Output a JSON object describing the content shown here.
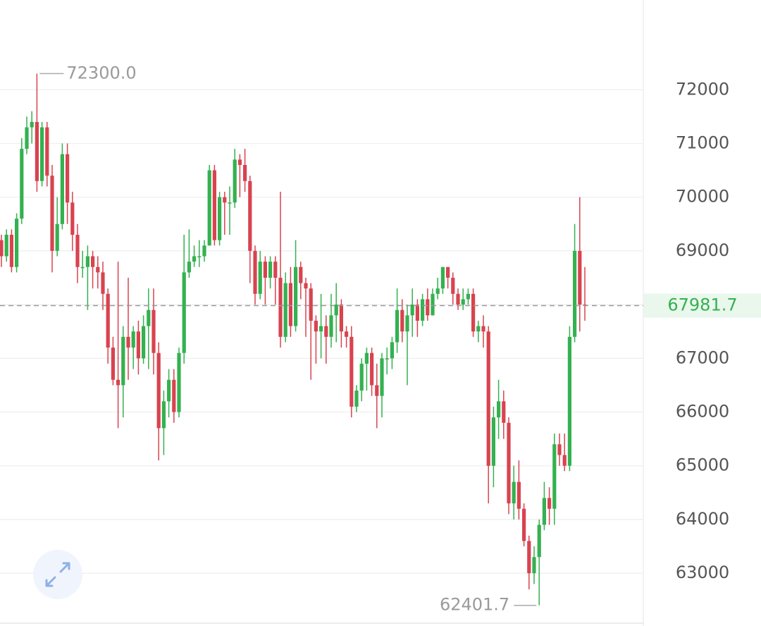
{
  "chart_data": {
    "type": "candlestick",
    "up_color": "#34b150",
    "down_color": "#d8434f",
    "ylim": [
      62070,
      73670
    ],
    "yticks": [
      63000,
      64000,
      65000,
      66000,
      67000,
      68000,
      69000,
      70000,
      71000,
      72000
    ],
    "grid": true,
    "last_price": 67981.7,
    "annotations": [
      {
        "value": 72300,
        "label": "72300.0"
      },
      {
        "value": 62401.7,
        "label": "62401.7"
      }
    ],
    "open": [
      69200,
      68900,
      69300,
      68700,
      69600,
      70900,
      71300,
      71400,
      70300,
      71300,
      70400,
      69000,
      69500,
      70800,
      69900,
      69300,
      68700,
      68700,
      68900,
      68700,
      68600,
      68200,
      67200,
      66600,
      66500,
      67400,
      67200,
      67500,
      67000,
      67600,
      67900,
      67100,
      65700,
      66200,
      66600,
      66000,
      67100,
      68600,
      68800,
      68900,
      68900,
      69100,
      70500,
      69200,
      70000,
      69900,
      69900,
      70700,
      70600,
      70300,
      69000,
      68200,
      68800,
      68500,
      68800,
      68500,
      67400,
      68400,
      67600,
      68700,
      68400,
      68300,
      67700,
      67500,
      67600,
      67400,
      67800,
      68000,
      67500,
      67400,
      66100,
      66400,
      66900,
      67100,
      66500,
      66300,
      67000,
      67000,
      67300,
      67900,
      67500,
      67800,
      68000,
      67700,
      68100,
      67800,
      68200,
      68300,
      68700,
      68500,
      68200,
      68000,
      68100,
      68200,
      67500,
      67600,
      67500,
      65000,
      65900,
      66200,
      65800,
      64300,
      64700,
      64200,
      63600,
      63000,
      63300,
      63900,
      64400,
      64200,
      65400,
      65200,
      65000,
      67400,
      69000,
      68000
    ],
    "high": [
      69300,
      69400,
      69400,
      69700,
      71100,
      71500,
      71600,
      72300,
      71400,
      71400,
      70600,
      70000,
      71000,
      71000,
      70100,
      69500,
      69000,
      69100,
      69000,
      68900,
      68800,
      68300,
      67400,
      68800,
      67600,
      68500,
      67600,
      67700,
      67800,
      68300,
      68300,
      67300,
      66400,
      66800,
      66800,
      67200,
      69300,
      69400,
      69100,
      69200,
      69200,
      70600,
      70600,
      70100,
      70100,
      70200,
      70900,
      70800,
      70900,
      70400,
      69100,
      69000,
      68900,
      68900,
      68900,
      70100,
      68600,
      68700,
      69200,
      68800,
      68500,
      68400,
      67800,
      68200,
      67800,
      68200,
      68400,
      68100,
      67600,
      67600,
      66500,
      67000,
      67200,
      67200,
      66900,
      67100,
      67200,
      67400,
      68300,
      68100,
      68000,
      68300,
      68100,
      68200,
      68300,
      68300,
      68500,
      68700,
      68700,
      68600,
      68300,
      68300,
      68300,
      68300,
      67700,
      67800,
      67600,
      66100,
      66600,
      66400,
      65900,
      65000,
      65100,
      64300,
      63700,
      63500,
      64000,
      64700,
      64600,
      65600,
      65600,
      65600,
      67600,
      69500,
      70000,
      68700
    ],
    "low": [
      68700,
      68800,
      68600,
      68600,
      69500,
      70800,
      71000,
      70100,
      70200,
      70200,
      68600,
      68900,
      69400,
      69500,
      69000,
      68400,
      68500,
      67900,
      68300,
      68300,
      67900,
      66900,
      66500,
      65700,
      65900,
      66600,
      66800,
      66700,
      66900,
      66800,
      66700,
      65100,
      65200,
      65900,
      65800,
      65900,
      66900,
      68500,
      68700,
      68700,
      68800,
      69100,
      69100,
      69100,
      69300,
      69300,
      69800,
      70000,
      70100,
      68400,
      68000,
      68100,
      68000,
      68300,
      68000,
      67200,
      67300,
      67400,
      67500,
      68100,
      67400,
      66600,
      66900,
      67000,
      66900,
      67200,
      67300,
      67200,
      67200,
      65900,
      66000,
      66200,
      66400,
      66300,
      65700,
      65900,
      66700,
      66800,
      67100,
      67300,
      66500,
      67400,
      67400,
      67600,
      67700,
      67800,
      68100,
      68200,
      68300,
      68000,
      67900,
      67900,
      68000,
      67400,
      67300,
      67200,
      64300,
      64600,
      65500,
      65500,
      64100,
      64000,
      64000,
      63500,
      62700,
      62800,
      62401.7,
      63800,
      63900,
      63900,
      65000,
      64900,
      64900,
      67300,
      67500,
      67700
    ],
    "close": [
      68900,
      69300,
      68700,
      69600,
      70900,
      71300,
      71400,
      70300,
      71300,
      70400,
      69000,
      69500,
      70800,
      69900,
      69300,
      68700,
      68700,
      68900,
      68700,
      68600,
      68200,
      67200,
      66600,
      66500,
      67400,
      67200,
      67500,
      67000,
      67600,
      67900,
      67100,
      65700,
      66200,
      66600,
      66000,
      67100,
      68600,
      68800,
      68900,
      68900,
      69100,
      70500,
      69200,
      70000,
      69900,
      69900,
      70700,
      70600,
      70300,
      69000,
      68200,
      68800,
      68500,
      68800,
      68500,
      67400,
      68400,
      67600,
      68700,
      68400,
      68300,
      67700,
      67500,
      67600,
      67400,
      67800,
      68000,
      67500,
      67400,
      66100,
      66400,
      66900,
      67100,
      66500,
      66300,
      67000,
      67000,
      67300,
      67900,
      67500,
      67800,
      68000,
      67700,
      68100,
      67800,
      68200,
      68300,
      68700,
      68500,
      68200,
      68000,
      68100,
      68200,
      67500,
      67600,
      67500,
      65000,
      65900,
      66200,
      65800,
      64300,
      64700,
      64200,
      63600,
      63000,
      63300,
      63900,
      64400,
      64200,
      65400,
      65200,
      65000,
      67400,
      69000,
      68000,
      67981.7
    ]
  }
}
